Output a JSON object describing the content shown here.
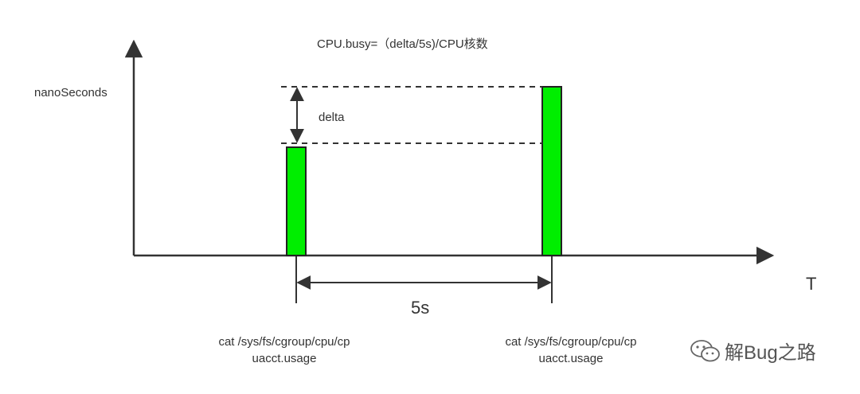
{
  "formula": "CPU.busy=（delta/5s)/CPU核数",
  "y_axis_label": "nanoSeconds",
  "x_axis_label": "T",
  "delta_label": "delta",
  "interval_label": "5s",
  "samples": [
    {
      "command_line1": "cat /sys/fs/cgroup/cpu/cp",
      "command_line2": "uacct.usage",
      "relative_value": 0.64
    },
    {
      "command_line1": "cat /sys/fs/cgroup/cpu/cp",
      "command_line2": "uacct.usage",
      "relative_value": 1.0
    }
  ],
  "watermark": "解Bug之路",
  "colors": {
    "bar_fill": "#00ee00",
    "line": "#333333"
  }
}
